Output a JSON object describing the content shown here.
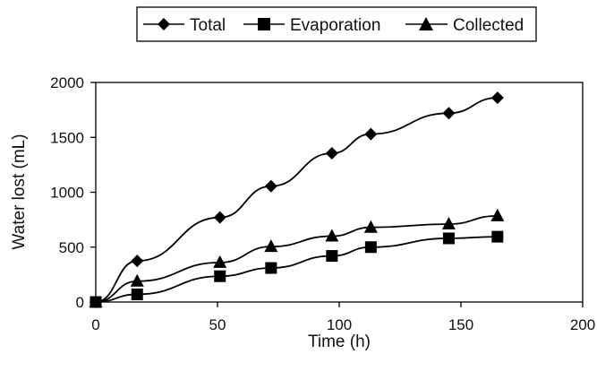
{
  "chart_data": {
    "type": "line",
    "title": "",
    "xlabel": "Time (h)",
    "ylabel": "Water lost (mL)",
    "xlim": [
      0,
      200
    ],
    "ylim": [
      0,
      2000
    ],
    "x_ticks": [
      0,
      50,
      100,
      150,
      200
    ],
    "y_ticks": [
      0,
      500,
      1000,
      1500,
      2000
    ],
    "x_tick_labels": [
      "0",
      "50",
      "100",
      "150",
      "200"
    ],
    "y_tick_labels": [
      "0",
      "500",
      "1000",
      "1500",
      "2000"
    ],
    "grid": false,
    "legend_position": "top-center",
    "series": [
      {
        "name": "Total",
        "marker": "diamond",
        "color": "#000000",
        "x": [
          0,
          17,
          51,
          72,
          97,
          113,
          145,
          165
        ],
        "y": [
          0,
          375,
          770,
          1055,
          1355,
          1530,
          1720,
          1860
        ]
      },
      {
        "name": "Evaporation",
        "marker": "square",
        "color": "#000000",
        "x": [
          0,
          17,
          51,
          72,
          97,
          113,
          145,
          165
        ],
        "y": [
          0,
          70,
          235,
          310,
          420,
          500,
          580,
          595
        ]
      },
      {
        "name": "Collected",
        "marker": "triangle",
        "color": "#000000",
        "x": [
          0,
          17,
          51,
          72,
          97,
          113,
          145,
          165
        ],
        "y": [
          0,
          190,
          360,
          505,
          600,
          680,
          710,
          785
        ]
      }
    ]
  }
}
